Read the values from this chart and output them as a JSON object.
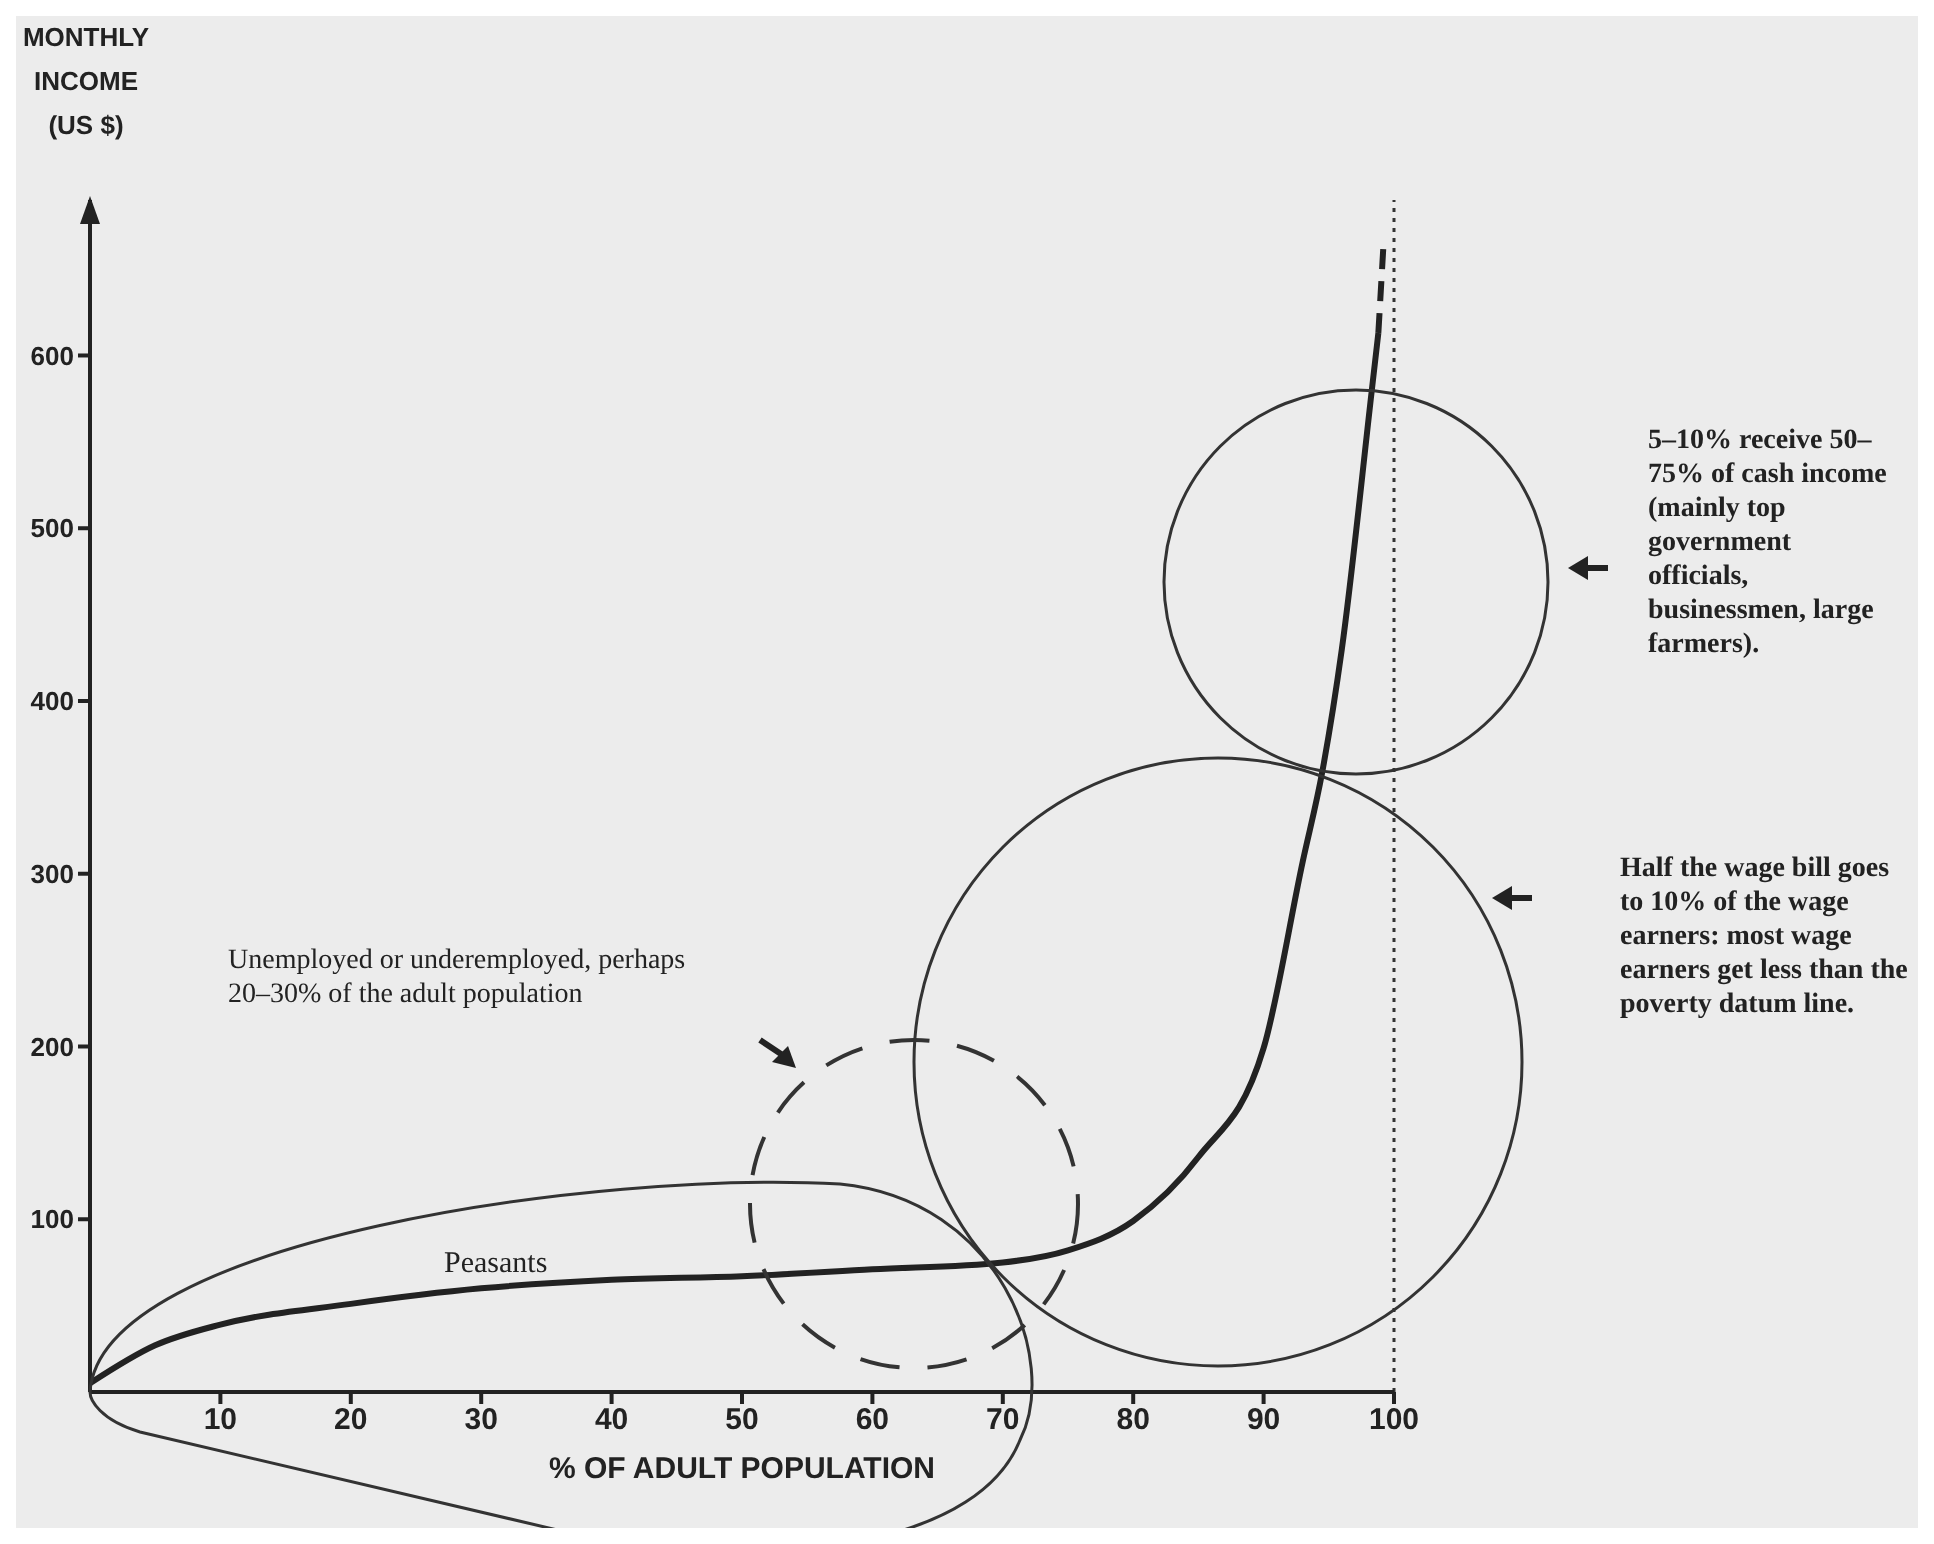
{
  "chart_data": {
    "type": "line",
    "xlabel": "% OF ADULT POPULATION",
    "ylabel": "MONTHLY INCOME (US $)",
    "xlim": [
      0,
      100
    ],
    "xticks": [
      10,
      20,
      30,
      40,
      50,
      60,
      70,
      80,
      90,
      100
    ],
    "ylim": [
      0,
      690
    ],
    "yticks": [
      100,
      200,
      300,
      400,
      500,
      600
    ],
    "series": [
      {
        "color": "#222222",
        "line_style": "solid",
        "x": [
          0,
          5,
          10,
          20,
          30,
          40,
          50,
          60,
          70,
          75,
          80,
          85,
          90,
          93,
          94.5,
          96,
          98.3,
          98.8
        ],
        "values": [
          5,
          27,
          39,
          51,
          60,
          65,
          67,
          71,
          75,
          82,
          99,
          136,
          199,
          307,
          359,
          430,
          580,
          613
        ]
      },
      {
        "color": "#222222",
        "line_style": "dashed",
        "x": [
          98.8,
          99.2
        ],
        "values": [
          613,
          665
        ]
      }
    ],
    "ref_lines": [
      {
        "axis": "x",
        "value": 100,
        "color": "#333333",
        "line_style": "dotted"
      }
    ],
    "annotations": [
      "Peasants",
      "Unemployed or underemployed, perhaps 20–30% of the adult population",
      "5–10% receive 50–75% of cash income (mainly top government officials, businessmen, large farmers).",
      "Half the wage bill goes to 10% of the wage earners: most wage earners get less than the poverty datum line."
    ]
  }
}
